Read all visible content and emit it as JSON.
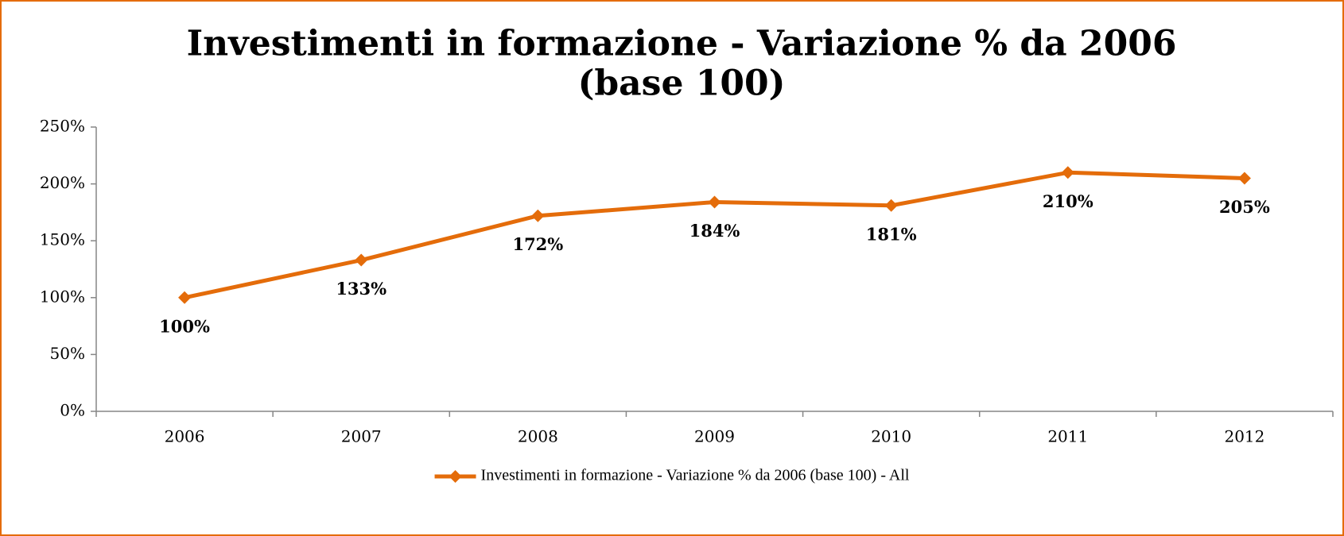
{
  "chart_data": {
    "type": "line",
    "title": [
      "Investimenti in formazione - Variazione % da 2006",
      "(base 100)"
    ],
    "categories": [
      "2006",
      "2007",
      "2008",
      "2009",
      "2010",
      "2011",
      "2012"
    ],
    "series": [
      {
        "name": "Investimenti in formazione - Variazione % da 2006 (base 100) - All",
        "color": "#e46c0a",
        "values": [
          100,
          133,
          172,
          184,
          181,
          210,
          205
        ],
        "value_labels": [
          "100%",
          "133%",
          "172%",
          "184%",
          "181%",
          "210%",
          "205%"
        ]
      }
    ],
    "ylim": [
      0,
      250
    ],
    "yticks": [
      {
        "value": 0,
        "label": "0%"
      },
      {
        "value": 50,
        "label": "50%"
      },
      {
        "value": 100,
        "label": "100%"
      },
      {
        "value": 150,
        "label": "150%"
      },
      {
        "value": 200,
        "label": "200%"
      },
      {
        "value": 250,
        "label": "250%"
      }
    ],
    "legend": "bottom"
  }
}
